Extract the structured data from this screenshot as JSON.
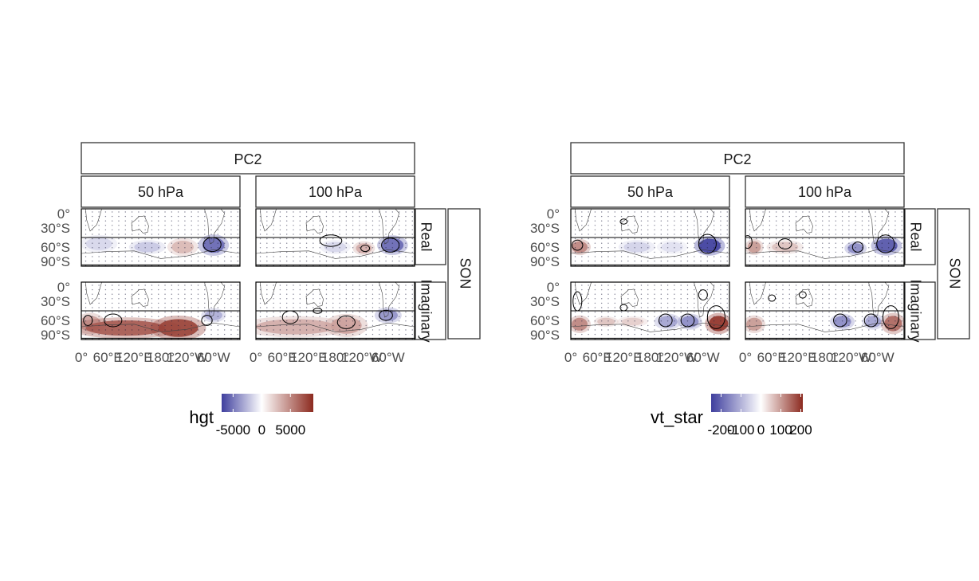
{
  "chart_data": [
    {
      "type": "heatmap",
      "panel_label": "PC2",
      "columns": [
        "50 hPa",
        "100 hPa"
      ],
      "rows": [
        "Real",
        "Imaginary"
      ],
      "season": "SON",
      "x_ticks": [
        "0°",
        "60°E",
        "120°E",
        "180°",
        "120°W",
        "60°W"
      ],
      "y_ticks": [
        "0°",
        "30°S",
        "60°S",
        "90°S"
      ],
      "xlim": [
        0,
        360
      ],
      "ylim": [
        -90,
        0
      ],
      "legend": {
        "title": "hgt",
        "ticks": [
          "-5000",
          "0",
          "5000"
        ],
        "tick_values": [
          -5000,
          0,
          5000
        ],
        "range": [
          -7000,
          9000
        ],
        "low_color": "#3f3f9e",
        "mid_color": "#ffffff",
        "high_color": "#8c2a1f"
      },
      "fields": [
        {
          "column": "50 hPa",
          "row": "Real",
          "blobs": [
            [
              300,
              -57,
              25,
              12,
              -5500
            ],
            [
              230,
              -60,
              25,
              10,
              3000
            ],
            [
              150,
              -60,
              30,
              8,
              -2000
            ],
            [
              40,
              -55,
              30,
              10,
              -1500
            ]
          ],
          "contours": [
            [
              297,
              -56,
              20,
              11
            ]
          ]
        },
        {
          "column": "100 hPa",
          "row": "Real",
          "blobs": [
            [
              310,
              -57,
              25,
              11,
              -5500
            ],
            [
              245,
              -62,
              18,
              8,
              3500
            ],
            [
              180,
              -60,
              25,
              8,
              -1500
            ]
          ],
          "contours": [
            [
              305,
              -57,
              20,
              11
            ],
            [
              248,
              -62,
              10,
              5
            ],
            [
              170,
              -50,
              25,
              9
            ]
          ]
        },
        {
          "column": "50 hPa",
          "row": "Imaginary",
          "blobs": [
            [
              100,
              -72,
              90,
              12,
              7000
            ],
            [
              220,
              -72,
              45,
              14,
              8000
            ],
            [
              300,
              -52,
              20,
              8,
              -3000
            ],
            [
              20,
              -65,
              25,
              12,
              4000
            ]
          ],
          "contours": [
            [
              15,
              -60,
              10,
              8
            ],
            [
              72,
              -60,
              20,
              10
            ],
            [
              285,
              -60,
              12,
              8
            ]
          ]
        },
        {
          "column": "100 hPa",
          "row": "Imaginary",
          "blobs": [
            [
              90,
              -70,
              90,
              12,
              3500
            ],
            [
              205,
              -68,
              35,
              13,
              4000
            ],
            [
              300,
              -52,
              22,
              9,
              -4000
            ]
          ],
          "contours": [
            [
              78,
              -55,
              18,
              10
            ],
            [
              205,
              -63,
              20,
              10
            ],
            [
              295,
              -52,
              15,
              8
            ],
            [
              140,
              -45,
              10,
              4
            ]
          ]
        }
      ]
    },
    {
      "type": "heatmap",
      "panel_label": "PC2",
      "columns": [
        "50 hPa",
        "100 hPa"
      ],
      "rows": [
        "Real",
        "Imaginary"
      ],
      "season": "SON",
      "x_ticks": [
        "0°",
        "60°E",
        "120°E",
        "180°",
        "120°W",
        "60°W"
      ],
      "y_ticks": [
        "0°",
        "30°S",
        "60°S",
        "90°S"
      ],
      "xlim": [
        0,
        360
      ],
      "ylim": [
        -90,
        0
      ],
      "legend": {
        "title": "vt_star",
        "ticks": [
          "-200",
          "-100",
          "0",
          "100",
          "200"
        ],
        "tick_values": [
          -200,
          -100,
          0,
          100,
          200
        ],
        "range": [
          -250,
          210
        ],
        "low_color": "#3f3f9e",
        "mid_color": "#ffffff",
        "high_color": "#8c2a1f"
      },
      "fields": [
        {
          "column": "50 hPa",
          "row": "Real",
          "blobs": [
            [
              315,
              -58,
              25,
              11,
              -250
            ],
            [
              20,
              -60,
              18,
              9,
              120
            ],
            [
              150,
              -60,
              30,
              8,
              -60
            ],
            [
              230,
              -60,
              25,
              8,
              -40
            ]
          ],
          "contours": [
            [
              310,
              -55,
              20,
              15
            ],
            [
              15,
              -57,
              12,
              8
            ],
            [
              120,
              -20,
              8,
              4
            ]
          ]
        },
        {
          "column": "100 hPa",
          "row": "Real",
          "blobs": [
            [
              320,
              -58,
              25,
              11,
              -220
            ],
            [
              250,
              -62,
              18,
              8,
              -150
            ],
            [
              90,
              -60,
              30,
              8,
              60
            ],
            [
              20,
              -60,
              15,
              9,
              100
            ]
          ],
          "contours": [
            [
              318,
              -55,
              20,
              14
            ],
            [
              255,
              -60,
              12,
              8
            ],
            [
              90,
              -55,
              15,
              8
            ],
            [
              5,
              -52,
              10,
              10
            ]
          ]
        },
        {
          "column": "50 hPa",
          "row": "Imaginary",
          "blobs": [
            [
              335,
              -65,
              22,
              12,
              200
            ],
            [
              270,
              -62,
              20,
              9,
              -150
            ],
            [
              220,
              -62,
              22,
              9,
              -120
            ],
            [
              20,
              -66,
              18,
              10,
              120
            ],
            [
              140,
              -62,
              25,
              6,
              50
            ],
            [
              80,
              -62,
              20,
              6,
              60
            ]
          ],
          "contours": [
            [
              330,
              -55,
              20,
              18
            ],
            [
              265,
              -60,
              15,
              10
            ],
            [
              215,
              -60,
              15,
              10
            ],
            [
              15,
              -30,
              10,
              15
            ],
            [
              120,
              -40,
              8,
              5
            ],
            [
              300,
              -20,
              10,
              8
            ]
          ]
        },
        {
          "column": "100 hPa",
          "row": "Imaginary",
          "blobs": [
            [
              335,
              -65,
              20,
              12,
              150
            ],
            [
              290,
              -62,
              18,
              9,
              -120
            ],
            [
              220,
              -62,
              20,
              9,
              -150
            ],
            [
              20,
              -66,
              18,
              10,
              100
            ]
          ],
          "contours": [
            [
              330,
              -55,
              18,
              18
            ],
            [
              285,
              -60,
              15,
              10
            ],
            [
              215,
              -60,
              15,
              10
            ],
            [
              130,
              -20,
              8,
              5
            ],
            [
              60,
              -25,
              8,
              5
            ]
          ]
        }
      ]
    }
  ]
}
